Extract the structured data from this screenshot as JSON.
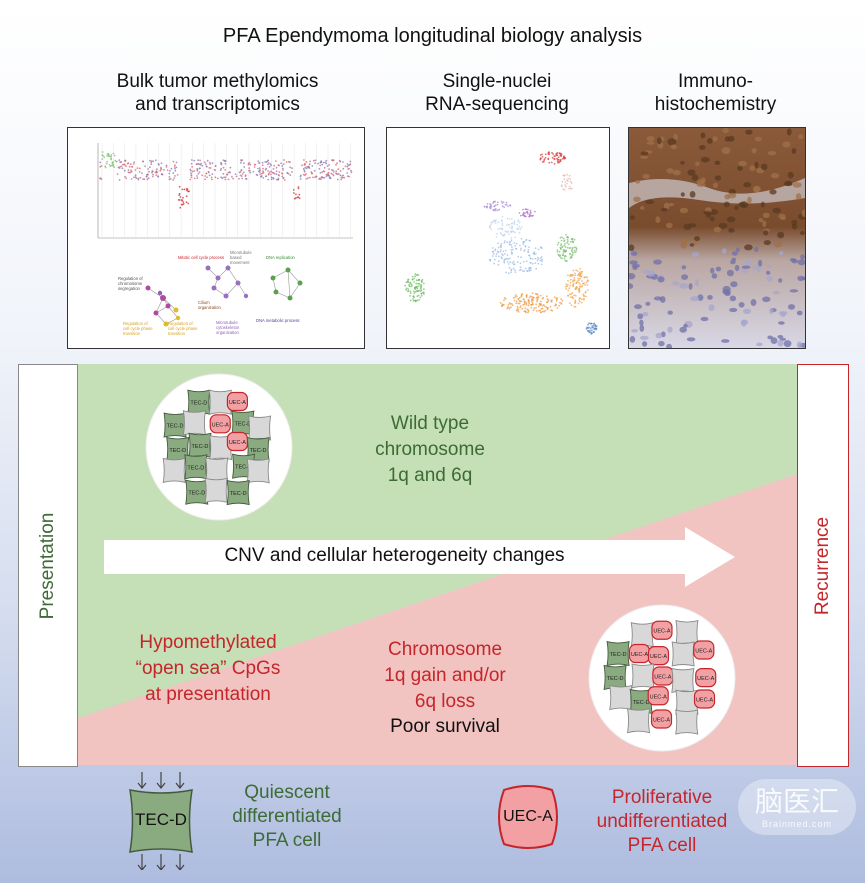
{
  "title": "PFA Ependymoma longitudinal biology analysis",
  "panels": [
    {
      "label_lines": [
        "Bulk tumor methylomics",
        "and transcriptomics"
      ]
    },
    {
      "label_lines": [
        "Single-nuclei",
        "RNA-sequencing"
      ]
    },
    {
      "label_lines": [
        "Immuno-",
        "histochemistry"
      ]
    }
  ],
  "network_labels": {
    "mitotic": "Mitotic cell cycle process",
    "microtubule_based": [
      "Microtubule",
      "based",
      "movement"
    ],
    "dna_replication": "DNA replication",
    "chromosome_seg": [
      "Regulation of",
      "chromosome",
      "segregation"
    ],
    "cilium": [
      "Cilium",
      "organization"
    ],
    "dna_metabolic": "DNA metabolic process",
    "reg1": [
      "Regulation of",
      "cell cycle phase",
      "transition"
    ],
    "reg2": [
      "Regulation of",
      "cell cycle phase",
      "transition"
    ],
    "microtubule_cyto": [
      "Microtubule",
      "cytoskeleton",
      "organization"
    ]
  },
  "sides": {
    "left": "Presentation",
    "right": "Recurrence"
  },
  "wild_type_lines": [
    "Wild type",
    "chromosome",
    "1q and 6q"
  ],
  "arrow_label": "CNV and cellular heterogeneity changes",
  "hypomethylated_lines": [
    "Hypomethylated",
    "“open sea” CpGs",
    "at presentation"
  ],
  "chromosome_lines": [
    "Chromosome",
    "1q gain and/or",
    "6q loss"
  ],
  "poor_survival": "Poor survival",
  "cell_labels": {
    "tec": "TEC-D",
    "uec": "UEC-A"
  },
  "legend": {
    "tec_label": "TEC-D",
    "tec_lines": [
      "Quiescent",
      "differentiated",
      "PFA cell"
    ],
    "uec_label": "UEC-A",
    "uec_lines": [
      "Proliferative",
      "undifferentiated",
      "PFA cell"
    ]
  },
  "watermark": {
    "chars": "脑医汇",
    "sub": "Brainmed.com"
  },
  "colors": {
    "green_text": "#3d6b35",
    "red_text": "#c4262b",
    "green_region": "#c5dfb6",
    "red_region": "#f1c3c1",
    "tec_fill": "#8aaa80",
    "uec_fill": "#f2a0a3"
  }
}
